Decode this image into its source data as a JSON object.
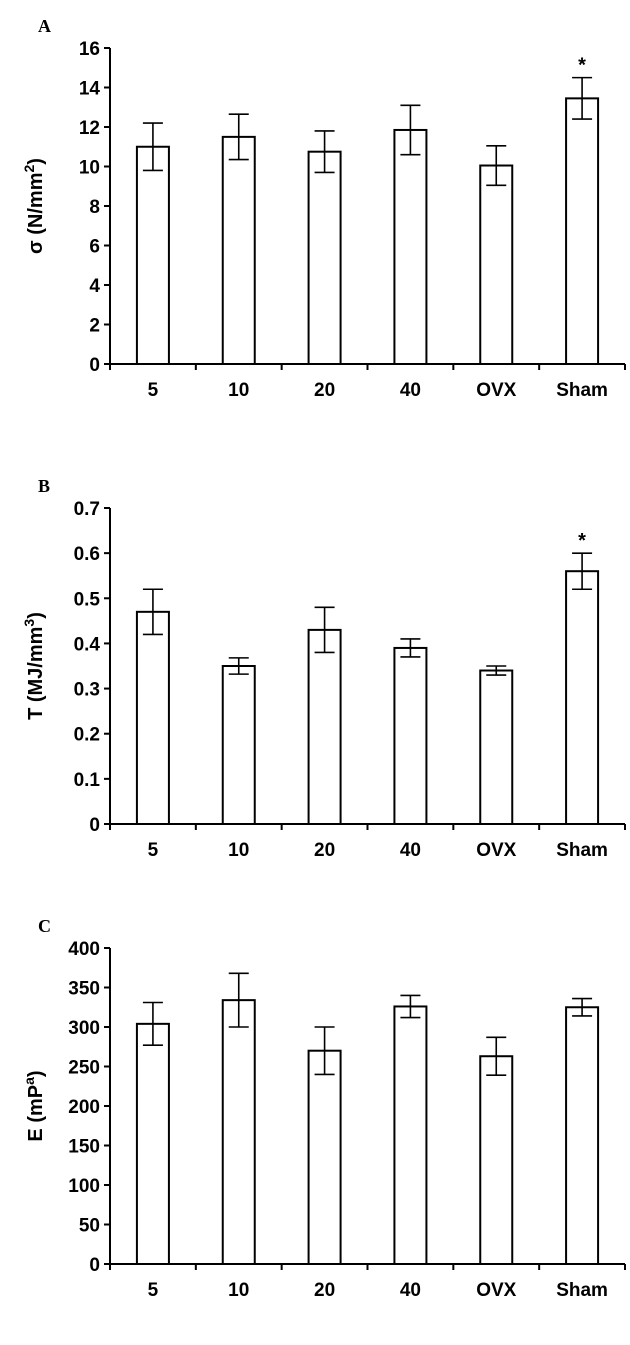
{
  "chart_data": [
    {
      "type": "bar",
      "panel_label": "A",
      "categories": [
        "5",
        "10",
        "20",
        "40",
        "OVX",
        "Sham"
      ],
      "values": [
        11.0,
        11.5,
        10.75,
        11.85,
        10.05,
        13.45
      ],
      "errors": [
        1.2,
        1.15,
        1.05,
        1.25,
        1.0,
        1.05
      ],
      "significance": [
        "",
        "",
        "",
        "",
        "",
        "*"
      ],
      "ylabel_main": "σ (N/mm",
      "ylabel_sup": "2",
      "ylabel_end": ")",
      "ylim": [
        0,
        16
      ],
      "yticks": [
        0,
        2,
        4,
        6,
        8,
        10,
        12,
        14,
        16
      ],
      "ytick_labels": [
        "0",
        "2",
        "4",
        "6",
        "8",
        "10",
        "12",
        "14",
        "16"
      ],
      "grid": false
    },
    {
      "type": "bar",
      "panel_label": "B",
      "categories": [
        "5",
        "10",
        "20",
        "40",
        "OVX",
        "Sham"
      ],
      "values": [
        0.47,
        0.35,
        0.43,
        0.39,
        0.34,
        0.56
      ],
      "errors": [
        0.05,
        0.018,
        0.05,
        0.02,
        0.01,
        0.04
      ],
      "significance": [
        "",
        "",
        "",
        "",
        "",
        "*"
      ],
      "ylabel_main": "T (MJ/mm",
      "ylabel_sup": "3",
      "ylabel_end": ")",
      "ylim": [
        0,
        0.7
      ],
      "yticks": [
        0,
        0.1,
        0.2,
        0.3,
        0.4,
        0.5,
        0.6,
        0.7
      ],
      "ytick_labels": [
        "0",
        "0.1",
        "0.2",
        "0.3",
        "0.4",
        "0.5",
        "0.6",
        "0.7"
      ],
      "grid": false
    },
    {
      "type": "bar",
      "panel_label": "C",
      "categories": [
        "5",
        "10",
        "20",
        "40",
        "OVX",
        "Sham"
      ],
      "values": [
        304,
        334,
        270,
        326,
        263,
        325
      ],
      "errors": [
        27,
        34,
        30,
        14,
        24,
        11
      ],
      "significance": [
        "",
        "",
        "",
        "",
        "",
        ""
      ],
      "ylabel_main": "E (mP",
      "ylabel_sup": "a",
      "ylabel_end": ")",
      "ylim": [
        0,
        400
      ],
      "yticks": [
        0,
        50,
        100,
        150,
        200,
        250,
        300,
        350,
        400
      ],
      "ytick_labels": [
        "0",
        "50",
        "100",
        "150",
        "200",
        "250",
        "300",
        "350",
        "400"
      ],
      "grid": false
    }
  ]
}
